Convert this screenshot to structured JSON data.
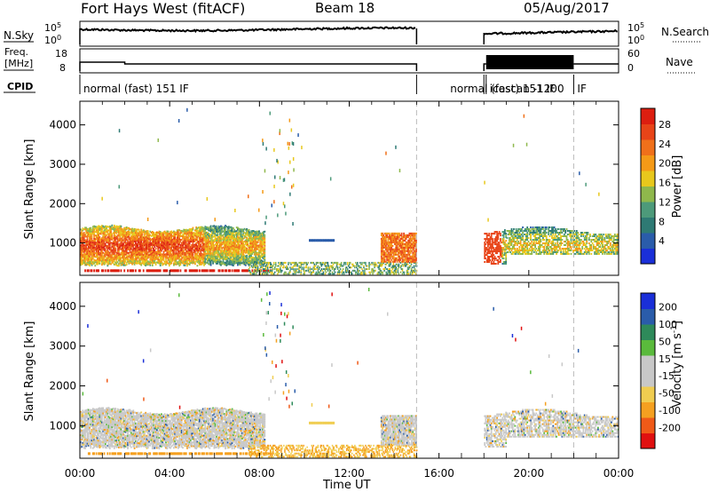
{
  "header": {
    "station": "Fort Hays West (fitACF)",
    "beam": "Beam 18",
    "date": "05/Aug/2017"
  },
  "labels": {
    "nsky": "N.Sky",
    "nsearch": "N.Search",
    "freq": "Freq.",
    "freq_unit": "[MHz]",
    "nave": "Nave",
    "cpid": "CPID",
    "time_axis": "Time UT"
  },
  "ticks": {
    "nsky_left": [
      "10^5",
      "10^0"
    ],
    "nsky_right": [
      "10^5",
      "10^0"
    ],
    "freq_left": [
      "18",
      "8"
    ],
    "nave_right": [
      "60",
      "0"
    ],
    "time": [
      "00:00",
      "04:00",
      "08:00",
      "12:00",
      "16:00",
      "20:00",
      "00:00"
    ]
  },
  "cpid_segments": [
    {
      "label": "normal (fast) 151 IF",
      "start_h": 0,
      "end_h": 15
    },
    {
      "label": "normal (fast) 151 IF",
      "start_h": 18,
      "end_h": 18.1
    },
    {
      "label": "icescan -1200",
      "start_h": 18.1,
      "end_h": 22
    },
    {
      "label": "IF",
      "start_h": 22,
      "end_h": 24
    }
  ],
  "colors": {
    "power": [
      "#1a2fd8",
      "#2a5caa",
      "#2e7a74",
      "#4d9a7a",
      "#8fb84c",
      "#e8c81c",
      "#f59a17",
      "#f0701a",
      "#e84418",
      "#dd1e10"
    ],
    "velocity": [
      "#e01010",
      "#f05a18",
      "#f5a020",
      "#f0cd50",
      "#c8c8c8",
      "#c8c8c8",
      "#5aba3c",
      "#2e8a5a",
      "#2a5caa",
      "#1a2fd8"
    ]
  },
  "chart_data": [
    {
      "type": "heatmap",
      "title": "Power",
      "ylabel": "Slant Range [km]",
      "xlabel": "Time UT",
      "y_ticks": [
        1000,
        2000,
        3000,
        4000
      ],
      "ylim": [
        180,
        4600
      ],
      "xlim_h": [
        0,
        24
      ],
      "colorbar_label": "Power [dB]",
      "colorbar_ticks": [
        "28",
        "24",
        "20",
        "16",
        "12",
        "8",
        "4"
      ],
      "colorbar_range": [
        0,
        30
      ]
    },
    {
      "type": "heatmap",
      "title": "Velocity",
      "ylabel": "Slant Range [km]",
      "xlabel": "Time UT",
      "y_ticks": [
        1000,
        2000,
        3000,
        4000
      ],
      "ylim": [
        180,
        4600
      ],
      "xlim_h": [
        0,
        24
      ],
      "colorbar_label": "Velocity [m s^-1]",
      "colorbar_ticks": [
        "200",
        "100",
        "50",
        "15",
        "-15",
        "-50",
        "-100",
        "-200"
      ],
      "colorbar_range": [
        -250,
        250
      ]
    }
  ]
}
